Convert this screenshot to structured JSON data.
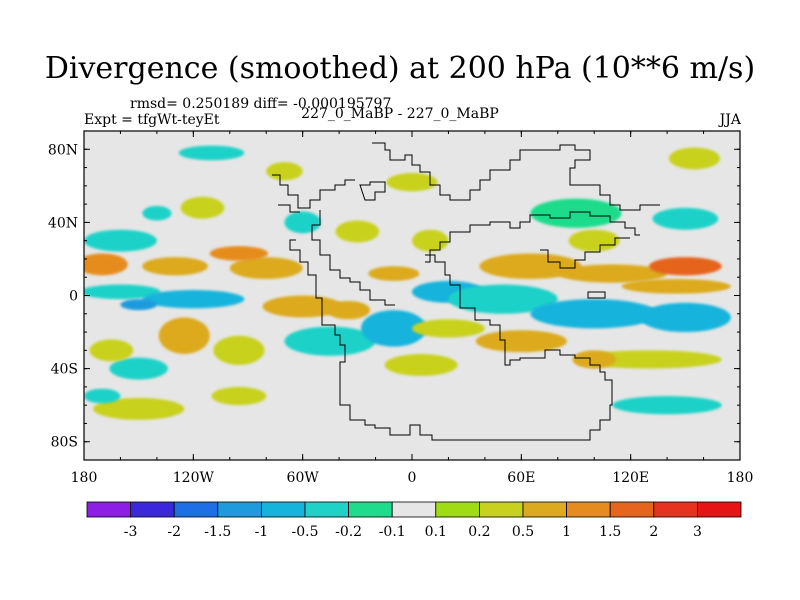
{
  "chart_data": {
    "type": "heatmap",
    "title": "Divergence (smoothed) at 200 hPa (10**6 m/s)",
    "stats": "rmsd= 0.250189 diff= -0.000195797",
    "experiment": "Expt = tfgWt-teyEt",
    "experiment_names": "227_0_MaBP - 227_0_MaBP",
    "season": "JJA",
    "xlabel": "",
    "ylabel": "",
    "xlim": [
      -180,
      180
    ],
    "ylim": [
      -90,
      90
    ],
    "x_ticks": [
      {
        "value": -180,
        "label": "180"
      },
      {
        "value": -120,
        "label": "120W"
      },
      {
        "value": -60,
        "label": "60W"
      },
      {
        "value": 0,
        "label": "0"
      },
      {
        "value": 60,
        "label": "60E"
      },
      {
        "value": 120,
        "label": "120E"
      },
      {
        "value": 180,
        "label": "180"
      }
    ],
    "y_ticks": [
      {
        "value": 80,
        "label": "80N"
      },
      {
        "value": 40,
        "label": "40N"
      },
      {
        "value": 0,
        "label": "0"
      },
      {
        "value": -40,
        "label": "40S"
      },
      {
        "value": -80,
        "label": "80S"
      }
    ],
    "colorbar": {
      "levels": [
        "-3",
        "-2",
        "-1.5",
        "-1",
        "-0.5",
        "-0.2",
        "-0.1",
        "0.1",
        "0.2",
        "0.5",
        "1",
        "1.5",
        "2",
        "3"
      ],
      "colors": [
        "#8c1ee6",
        "#3c28dc",
        "#1e6ee6",
        "#1e9bdc",
        "#14b4dc",
        "#1ed2c8",
        "#1edc8c",
        "#e6e6e6",
        "#a0dc14",
        "#c8d21e",
        "#dcaa1e",
        "#e68c1e",
        "#e6641e",
        "#e6321e",
        "#e61414"
      ]
    },
    "field_features": [
      {
        "lon": -170,
        "lat": 17,
        "rlon": 14,
        "rlat": 6,
        "value": 1.2
      },
      {
        "lon": -130,
        "lat": 16,
        "rlon": 18,
        "rlat": 5,
        "value": 0.8
      },
      {
        "lon": -80,
        "lat": 15,
        "rlon": 20,
        "rlat": 6,
        "value": 0.6
      },
      {
        "lon": -95,
        "lat": 23,
        "rlon": 16,
        "rlat": 4,
        "value": 1.0
      },
      {
        "lon": -160,
        "lat": 2,
        "rlon": 22,
        "rlat": 4,
        "value": -0.3
      },
      {
        "lon": -120,
        "lat": -2,
        "rlon": 28,
        "rlat": 5,
        "value": -0.8
      },
      {
        "lon": -150,
        "lat": -5,
        "rlon": 10,
        "rlat": 3,
        "value": -1.2
      },
      {
        "lon": -60,
        "lat": -6,
        "rlon": 22,
        "rlat": 6,
        "value": 0.6
      },
      {
        "lon": -35,
        "lat": -8,
        "rlon": 12,
        "rlat": 5,
        "value": 0.9
      },
      {
        "lon": -150,
        "lat": -40,
        "rlon": 16,
        "rlat": 6,
        "value": -0.4
      },
      {
        "lon": -125,
        "lat": -22,
        "rlon": 14,
        "rlat": 10,
        "value": 0.5
      },
      {
        "lon": -95,
        "lat": -30,
        "rlon": 14,
        "rlat": 8,
        "value": 0.4
      },
      {
        "lon": -165,
        "lat": -30,
        "rlon": 12,
        "rlat": 6,
        "value": 0.3
      },
      {
        "lon": -45,
        "lat": -25,
        "rlon": 25,
        "rlat": 8,
        "value": -0.3
      },
      {
        "lon": -10,
        "lat": -18,
        "rlon": 18,
        "rlat": 10,
        "value": -0.8
      },
      {
        "lon": 5,
        "lat": -38,
        "rlon": 20,
        "rlat": 6,
        "value": 0.3
      },
      {
        "lon": 20,
        "lat": 2,
        "rlon": 20,
        "rlat": 6,
        "value": -0.7
      },
      {
        "lon": 50,
        "lat": -2,
        "rlon": 30,
        "rlat": 8,
        "value": -0.4
      },
      {
        "lon": 100,
        "lat": -10,
        "rlon": 35,
        "rlat": 8,
        "value": -0.7
      },
      {
        "lon": 150,
        "lat": -12,
        "rlon": 25,
        "rlat": 8,
        "value": -0.6
      },
      {
        "lon": 145,
        "lat": 5,
        "rlon": 30,
        "rlat": 4,
        "value": 0.6
      },
      {
        "lon": 110,
        "lat": 12,
        "rlon": 30,
        "rlat": 5,
        "value": 0.9
      },
      {
        "lon": 150,
        "lat": 16,
        "rlon": 20,
        "rlat": 5,
        "value": 1.5
      },
      {
        "lon": 65,
        "lat": 16,
        "rlon": 28,
        "rlat": 7,
        "value": 0.8
      },
      {
        "lon": 60,
        "lat": -25,
        "rlon": 25,
        "rlat": 6,
        "value": 0.5
      },
      {
        "lon": 130,
        "lat": -35,
        "rlon": 40,
        "rlat": 5,
        "value": 0.3
      },
      {
        "lon": -160,
        "lat": 30,
        "rlon": 20,
        "rlat": 6,
        "value": -0.3
      },
      {
        "lon": -115,
        "lat": 48,
        "rlon": 12,
        "rlat": 6,
        "value": 0.3
      },
      {
        "lon": -140,
        "lat": 45,
        "rlon": 8,
        "rlat": 4,
        "value": -0.3
      },
      {
        "lon": -60,
        "lat": 40,
        "rlon": 10,
        "rlat": 6,
        "value": -0.3
      },
      {
        "lon": -30,
        "lat": 35,
        "rlon": 12,
        "rlat": 6,
        "value": 0.4
      },
      {
        "lon": 10,
        "lat": 30,
        "rlon": 10,
        "rlat": 6,
        "value": 0.3
      },
      {
        "lon": 90,
        "lat": 45,
        "rlon": 25,
        "rlat": 8,
        "value": -0.2
      },
      {
        "lon": 100,
        "lat": 30,
        "rlon": 14,
        "rlat": 6,
        "value": 0.4
      },
      {
        "lon": 150,
        "lat": 42,
        "rlon": 18,
        "rlat": 6,
        "value": -0.3
      },
      {
        "lon": -110,
        "lat": 78,
        "rlon": 18,
        "rlat": 4,
        "value": -0.3
      },
      {
        "lon": 0,
        "lat": 62,
        "rlon": 14,
        "rlat": 5,
        "value": 0.3
      },
      {
        "lon": -70,
        "lat": 68,
        "rlon": 10,
        "rlat": 5,
        "value": 0.3
      },
      {
        "lon": 155,
        "lat": 75,
        "rlon": 14,
        "rlat": 6,
        "value": 0.3
      },
      {
        "lon": -150,
        "lat": -62,
        "rlon": 25,
        "rlat": 6,
        "value": 0.3
      },
      {
        "lon": -95,
        "lat": -55,
        "rlon": 15,
        "rlat": 5,
        "value": 0.3
      },
      {
        "lon": -170,
        "lat": -55,
        "rlon": 10,
        "rlat": 4,
        "value": -0.3
      },
      {
        "lon": 140,
        "lat": -60,
        "rlon": 30,
        "rlat": 5,
        "value": -0.3
      },
      {
        "lon": 100,
        "lat": -35,
        "rlon": 12,
        "rlat": 5,
        "value": 0.6
      },
      {
        "lon": -10,
        "lat": 12,
        "rlon": 14,
        "rlat": 4,
        "value": 0.5
      },
      {
        "lon": 20,
        "lat": -18,
        "rlon": 20,
        "rlat": 5,
        "value": 0.4
      }
    ]
  }
}
